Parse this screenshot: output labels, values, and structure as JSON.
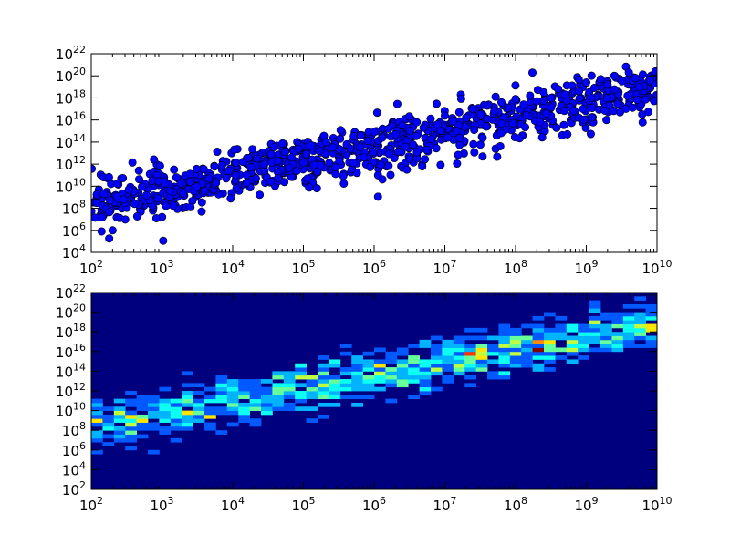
{
  "chart_data": [
    {
      "type": "scatter",
      "xscale": "log",
      "yscale": "log",
      "xlim": [
        100,
        10000000000
      ],
      "ylim": [
        10000,
        10000000000000000000000
      ],
      "x_ticks": [
        {
          "base": "10",
          "exp": "2"
        },
        {
          "base": "10",
          "exp": "3"
        },
        {
          "base": "10",
          "exp": "4"
        },
        {
          "base": "10",
          "exp": "5"
        },
        {
          "base": "10",
          "exp": "6"
        },
        {
          "base": "10",
          "exp": "7"
        },
        {
          "base": "10",
          "exp": "8"
        },
        {
          "base": "10",
          "exp": "9"
        },
        {
          "base": "10",
          "exp": "10"
        }
      ],
      "y_ticks": [
        {
          "base": "10",
          "exp": "4"
        },
        {
          "base": "10",
          "exp": "6"
        },
        {
          "base": "10",
          "exp": "8"
        },
        {
          "base": "10",
          "exp": "10"
        },
        {
          "base": "10",
          "exp": "12"
        },
        {
          "base": "10",
          "exp": "14"
        },
        {
          "base": "10",
          "exp": "16"
        },
        {
          "base": "10",
          "exp": "18"
        },
        {
          "base": "10",
          "exp": "20"
        },
        {
          "base": "10",
          "exp": "22"
        }
      ],
      "marker_color": "#0000ff",
      "trend": {
        "log_x_range": [
          2,
          10
        ],
        "log_y_range": [
          8.3,
          18.8
        ],
        "log_y_spread": 1.2
      },
      "points": [
        [
          120.0,
          310000000.0
        ],
        [
          150.0,
          2000000000.0
        ],
        [
          180.0,
          45000000.0
        ],
        [
          230.0,
          1200000000.0
        ],
        [
          290.0,
          630000000.0
        ],
        [
          340.0,
          5000000000.0
        ],
        [
          410.0,
          250000000.0
        ],
        [
          520.0,
          8900000000.0
        ],
        [
          600.0,
          1500000000.0
        ],
        [
          730.0,
          32000000000.0
        ],
        [
          880.0,
          790000000.0
        ],
        [
          1100.0,
          18000000000.0
        ],
        [
          1300.0,
          4000000000.0
        ],
        [
          1600.0,
          63000000000.0
        ],
        [
          2000.0,
          2200000000.0
        ],
        [
          2500.0,
          130000000000.0
        ],
        [
          3100.0,
          9000000000.0
        ],
        [
          3900.0,
          350000000000.0
        ],
        [
          4600.0,
          50000000000.0
        ],
        [
          5800.0,
          20000000000.0
        ],
        [
          7100.0,
          790000000000.0
        ],
        [
          8900.0,
          250000000000.0
        ],
        [
          11000.0,
          100000000000.0
        ],
        [
          14000.0,
          1600000000000.0
        ],
        [
          18000.0,
          500000000000.0
        ],
        [
          22000.0,
          3200000000000.0
        ],
        [
          28000.0,
          1000000000000.0
        ],
        [
          35000.0,
          8000000000000.0
        ],
        [
          43000.0,
          2000000000000.0
        ],
        [
          55000.0,
          13000000000000.0
        ],
        [
          68000.0,
          4000000000000.0
        ],
        [
          85000.0,
          25000000000000.0
        ],
        [
          110000.0,
          8000000000000.0
        ],
        [
          130000.0,
          50000000000000.0
        ],
        [
          170000.0,
          16000000000000.0
        ],
        [
          210000.0,
          100000000000000.0
        ],
        [
          260000.0,
          32000000000000.0
        ],
        [
          330000.0,
          200000000000000.0
        ],
        [
          410000.0,
          63000000000000.0
        ],
        [
          510000.0,
          1300000000000.0
        ],
        [
          650000.0,
          400000000000000.0
        ],
        [
          810000.0,
          130000000000000.0
        ],
        [
          1000000.0,
          800000000000000.0
        ],
        [
          1300000.0,
          250000000000000.0
        ],
        [
          1600000.0,
          1600000000000000.0
        ],
        [
          2000000.0,
          500000000000000.0
        ],
        [
          2500000.0,
          3200000000000000.0
        ],
        [
          3200000.0,
          1000000000000000.0
        ],
        [
          4000000.0,
          6300000000000000.0
        ],
        [
          5000000.0,
          2000000000000000.0
        ],
        [
          6300000.0,
          1.3e+16
        ],
        [
          7900000.0,
          4000000000000000.0
        ],
        [
          10000000.0,
          2.5e+16
        ],
        [
          13000000.0,
          8000000000000000.0
        ],
        [
          16000000.0,
          5e+16
        ],
        [
          20000000.0,
          1.6e+16
        ],
        [
          25000000.0,
          1e+17
        ],
        [
          32000000.0,
          3.2e+16
        ],
        [
          40000000.0,
          2e+17
        ],
        [
          50000000.0,
          6.3e+16
        ],
        [
          63000000.0,
          4e+17
        ],
        [
          79000000.0,
          1.3e+17
        ],
        [
          100000000.0,
          8e+17
        ],
        [
          130000000.0,
          2.5e+17
        ],
        [
          160000000.0,
          1.6e+18
        ],
        [
          200000000.0,
          5e+17
        ],
        [
          250000000.0,
          3.2e+18
        ],
        [
          320000000.0,
          1e+18
        ],
        [
          400000000.0,
          6.3e+18
        ],
        [
          500000000.0,
          2e+18
        ],
        [
          630000000.0,
          1.3e+19
        ],
        [
          790000000.0,
          4e+18
        ],
        [
          1000000000.0,
          2.5e+19
        ],
        [
          1300000000.0,
          8e+18
        ],
        [
          1600000000.0,
          5e+19
        ],
        [
          2000000000.0,
          1.6e+19
        ],
        [
          2500000000.0,
          1e+20
        ],
        [
          3200000000.0,
          3.2e+19
        ],
        [
          4000000000.0,
          2e+20
        ],
        [
          5000000000.0,
          6.3e+19
        ],
        [
          6300000000.0,
          1.3e+20
        ],
        [
          7900000000.0,
          4e+19
        ],
        [
          9500000000.0,
          2.5e+20
        ],
        [
          140.0,
          800000.0
        ],
        [
          200.0,
          1000000.0
        ],
        [
          900000000.0,
          1e+17
        ],
        [
          3000000000.0,
          5e+16
        ]
      ]
    },
    {
      "type": "heatmap",
      "xscale": "log",
      "yscale": "log",
      "xlim": [
        100,
        10000000000
      ],
      "ylim": [
        100,
        10000000000000000000000
      ],
      "x_ticks": [
        {
          "base": "10",
          "exp": "2"
        },
        {
          "base": "10",
          "exp": "3"
        },
        {
          "base": "10",
          "exp": "4"
        },
        {
          "base": "10",
          "exp": "5"
        },
        {
          "base": "10",
          "exp": "6"
        },
        {
          "base": "10",
          "exp": "7"
        },
        {
          "base": "10",
          "exp": "8"
        },
        {
          "base": "10",
          "exp": "9"
        },
        {
          "base": "10",
          "exp": "10"
        }
      ],
      "y_ticks": [
        {
          "base": "10",
          "exp": "2"
        },
        {
          "base": "10",
          "exp": "4"
        },
        {
          "base": "10",
          "exp": "6"
        },
        {
          "base": "10",
          "exp": "8"
        },
        {
          "base": "10",
          "exp": "10"
        },
        {
          "base": "10",
          "exp": "12"
        },
        {
          "base": "10",
          "exp": "14"
        },
        {
          "base": "10",
          "exp": "16"
        },
        {
          "base": "10",
          "exp": "18"
        },
        {
          "base": "10",
          "exp": "20"
        },
        {
          "base": "10",
          "exp": "22"
        }
      ],
      "colormap": "jet",
      "background_color": "#00007f",
      "bins": {
        "x": 50,
        "y": 50
      },
      "trend": {
        "log_x_range": [
          2,
          10
        ],
        "log_y_range": [
          8.3,
          18.8
        ],
        "log_y_spread": 1.2
      }
    }
  ]
}
